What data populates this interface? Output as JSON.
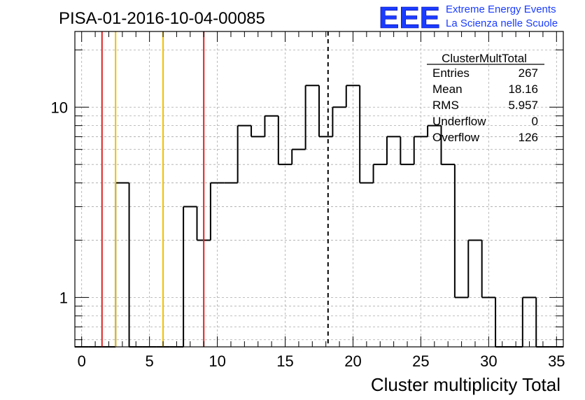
{
  "chart_data": {
    "type": "histogram",
    "title": "PISA-01-2016-10-04-00085",
    "xlabel": "Cluster multiplicity Total",
    "ylabel": "",
    "xlim": [
      -0.5,
      35.5
    ],
    "ylim": [
      0.55,
      25
    ],
    "y_scale": "log",
    "grid": true,
    "bin_width": 1,
    "bin_low_edges": [
      -0.5,
      0.5,
      1.5,
      2.5,
      3.5,
      4.5,
      5.5,
      6.5,
      7.5,
      8.5,
      9.5,
      10.5,
      11.5,
      12.5,
      13.5,
      14.5,
      15.5,
      16.5,
      17.5,
      18.5,
      19.5,
      20.5,
      21.5,
      22.5,
      23.5,
      24.5,
      25.5,
      26.5,
      27.5,
      28.5,
      29.5,
      30.5,
      31.5,
      32.5,
      33.5,
      34.5
    ],
    "counts": [
      0,
      0,
      0,
      4,
      0,
      0,
      0,
      0,
      3,
      2,
      4,
      4,
      8,
      7,
      9,
      5,
      6,
      13,
      7,
      10,
      13,
      4,
      5,
      7,
      5,
      7,
      8,
      5,
      1,
      2,
      1,
      0,
      0,
      1,
      0,
      0
    ],
    "x_ticks": [
      "0",
      "5",
      "10",
      "15",
      "20",
      "25",
      "30",
      "35"
    ],
    "x_tick_values": [
      0,
      5,
      10,
      15,
      20,
      25,
      30,
      35
    ],
    "y_ticks": [
      "1",
      "10"
    ],
    "y_tick_values": [
      1,
      10
    ],
    "vertical_lines": [
      {
        "x": 1.5,
        "color": "#e02020",
        "style": "solid"
      },
      {
        "x": 2.5,
        "color": "#f0c000",
        "style": "solid"
      },
      {
        "x": 6.0,
        "color": "#f0c000",
        "style": "solid"
      },
      {
        "x": 9.0,
        "color": "#e02020",
        "style": "solid"
      },
      {
        "x": 18.16,
        "color": "#000000",
        "style": "dashed"
      }
    ],
    "stats_box": {
      "title": "ClusterMultTotal",
      "rows": [
        {
          "label": "Entries",
          "value": "267"
        },
        {
          "label": "Mean",
          "value": "18.16"
        },
        {
          "label": "RMS",
          "value": "5.957"
        },
        {
          "label": "Underflow",
          "value": "0"
        },
        {
          "label": "Overflow",
          "value": "126"
        }
      ]
    }
  },
  "logo": {
    "letters": "EEE",
    "line1": "Extreme Energy Events",
    "line2": "La Scienza nelle Scuole"
  },
  "colors": {
    "histogram": "#000000",
    "grid": "#aaaaaa",
    "logo_blue": "#1a3cff"
  }
}
